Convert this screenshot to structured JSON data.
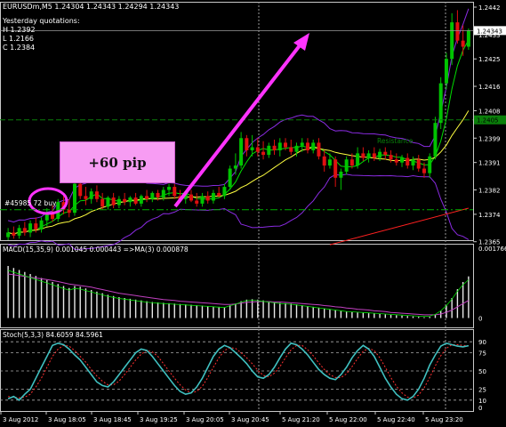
{
  "header": {
    "symbol_line": "EURUSDm,M5  1.24304 1.24343 1.24294 1.24343",
    "yesterday_label": "Yesterday quotations:",
    "high": "H 1.2392",
    "low": "L 1.2166",
    "close": "C 1.2384"
  },
  "annotations": {
    "pip_label": "+60 pip",
    "order_label": "#45985 72 buy",
    "resistance_label": "Resistance"
  },
  "indicators": {
    "macd_label": "MACD(15,35,9) 0.001045 0.000443  =>MA(3) 0.000878",
    "stoch_label": "Stoch(5,3,3) 84.6059 84.5961"
  },
  "colors": {
    "bull": "#00c400",
    "bear": "#e01010",
    "arrow": "#ff33ff",
    "bollinger": "#8a2be2",
    "ema_fast": "#00e000",
    "ema_slow": "#ffff40",
    "trend": "#ff2020",
    "macd_signal": "#c040c0",
    "stoch_main": "#40c0c0",
    "stoch_signal": "#ff3030",
    "resistance": "#0a7f0a"
  },
  "chart_data": [
    {
      "type": "candlestick",
      "symbol": "EURUSDm",
      "timeframe": "M5",
      "ylim": [
        1.23655,
        1.2442
      ],
      "price_axis": [
        "1.2442",
        "1.2433",
        "1.2425",
        "1.2416",
        "1.2408",
        "1.2399",
        "1.2391",
        "1.2382",
        "1.2374",
        "1.2365"
      ],
      "current_price": "1.24343",
      "resistance_price": "1.2405",
      "time_axis": [
        "3 Aug 2012",
        "3 Aug 18:05",
        "3 Aug 18:45",
        "3 Aug 19:25",
        "3 Aug 20:05",
        "3 Aug 20:45",
        "5 Aug 21:20",
        "5 Aug 22:00",
        "5 Aug 22:40",
        "5 Aug 23:20"
      ],
      "candles": [
        {
          "o": 1.23665,
          "h": 1.23695,
          "l": 1.23655,
          "c": 1.2368
        },
        {
          "o": 1.2368,
          "h": 1.237,
          "l": 1.2366,
          "c": 1.2367
        },
        {
          "o": 1.2367,
          "h": 1.23705,
          "l": 1.2366,
          "c": 1.23695
        },
        {
          "o": 1.23695,
          "h": 1.23715,
          "l": 1.2367,
          "c": 1.2368
        },
        {
          "o": 1.2368,
          "h": 1.2372,
          "l": 1.23665,
          "c": 1.2371
        },
        {
          "o": 1.2371,
          "h": 1.2373,
          "l": 1.2368,
          "c": 1.2369
        },
        {
          "o": 1.2369,
          "h": 1.2373,
          "l": 1.2368,
          "c": 1.2372
        },
        {
          "o": 1.2372,
          "h": 1.2376,
          "l": 1.237,
          "c": 1.2374
        },
        {
          "o": 1.2374,
          "h": 1.2377,
          "l": 1.23715,
          "c": 1.23725
        },
        {
          "o": 1.23725,
          "h": 1.2379,
          "l": 1.23715,
          "c": 1.2378
        },
        {
          "o": 1.2378,
          "h": 1.238,
          "l": 1.2374,
          "c": 1.23755
        },
        {
          "o": 1.23755,
          "h": 1.2379,
          "l": 1.2373,
          "c": 1.23745
        },
        {
          "o": 1.23745,
          "h": 1.2385,
          "l": 1.23735,
          "c": 1.2384
        },
        {
          "o": 1.2384,
          "h": 1.2386,
          "l": 1.2379,
          "c": 1.238
        },
        {
          "o": 1.238,
          "h": 1.2383,
          "l": 1.2377,
          "c": 1.2379
        },
        {
          "o": 1.2379,
          "h": 1.23825,
          "l": 1.23775,
          "c": 1.23815
        },
        {
          "o": 1.23815,
          "h": 1.23835,
          "l": 1.2378,
          "c": 1.2379
        },
        {
          "o": 1.2379,
          "h": 1.2381,
          "l": 1.23755,
          "c": 1.23765
        },
        {
          "o": 1.23765,
          "h": 1.238,
          "l": 1.23755,
          "c": 1.23795
        },
        {
          "o": 1.23795,
          "h": 1.2381,
          "l": 1.2376,
          "c": 1.2377
        },
        {
          "o": 1.2377,
          "h": 1.238,
          "l": 1.2376,
          "c": 1.2379
        },
        {
          "o": 1.2379,
          "h": 1.2381,
          "l": 1.2377,
          "c": 1.2378
        },
        {
          "o": 1.2378,
          "h": 1.238,
          "l": 1.23765,
          "c": 1.23795
        },
        {
          "o": 1.23795,
          "h": 1.2381,
          "l": 1.2377,
          "c": 1.23775
        },
        {
          "o": 1.23775,
          "h": 1.23805,
          "l": 1.23765,
          "c": 1.238
        },
        {
          "o": 1.238,
          "h": 1.2382,
          "l": 1.2378,
          "c": 1.2379
        },
        {
          "o": 1.2379,
          "h": 1.23815,
          "l": 1.2378,
          "c": 1.2381
        },
        {
          "o": 1.2381,
          "h": 1.2382,
          "l": 1.23785,
          "c": 1.23795
        },
        {
          "o": 1.23795,
          "h": 1.2383,
          "l": 1.23785,
          "c": 1.2382
        },
        {
          "o": 1.2382,
          "h": 1.2384,
          "l": 1.238,
          "c": 1.2383
        },
        {
          "o": 1.2383,
          "h": 1.2384,
          "l": 1.2379,
          "c": 1.238
        },
        {
          "o": 1.238,
          "h": 1.2382,
          "l": 1.2378,
          "c": 1.2379
        },
        {
          "o": 1.2379,
          "h": 1.23815,
          "l": 1.23775,
          "c": 1.23805
        },
        {
          "o": 1.23805,
          "h": 1.2382,
          "l": 1.2378,
          "c": 1.23785
        },
        {
          "o": 1.23785,
          "h": 1.2381,
          "l": 1.23765,
          "c": 1.23775
        },
        {
          "o": 1.23775,
          "h": 1.2381,
          "l": 1.23765,
          "c": 1.238
        },
        {
          "o": 1.238,
          "h": 1.23815,
          "l": 1.23775,
          "c": 1.23785
        },
        {
          "o": 1.23785,
          "h": 1.2382,
          "l": 1.23775,
          "c": 1.2381
        },
        {
          "o": 1.2381,
          "h": 1.2383,
          "l": 1.23795,
          "c": 1.238
        },
        {
          "o": 1.238,
          "h": 1.2384,
          "l": 1.2379,
          "c": 1.2383
        },
        {
          "o": 1.2383,
          "h": 1.239,
          "l": 1.2382,
          "c": 1.2389
        },
        {
          "o": 1.2389,
          "h": 1.2394,
          "l": 1.2387,
          "c": 1.239
        },
        {
          "o": 1.239,
          "h": 1.2401,
          "l": 1.2389,
          "c": 1.2399
        },
        {
          "o": 1.2399,
          "h": 1.24,
          "l": 1.2393,
          "c": 1.2395
        },
        {
          "o": 1.2395,
          "h": 1.24,
          "l": 1.2393,
          "c": 1.2396
        },
        {
          "o": 1.2396,
          "h": 1.2399,
          "l": 1.2393,
          "c": 1.23945
        },
        {
          "o": 1.23945,
          "h": 1.2398,
          "l": 1.2392,
          "c": 1.23935
        },
        {
          "o": 1.23935,
          "h": 1.23975,
          "l": 1.23925,
          "c": 1.23965
        },
        {
          "o": 1.23965,
          "h": 1.23985,
          "l": 1.23935,
          "c": 1.2395
        },
        {
          "o": 1.2395,
          "h": 1.2399,
          "l": 1.2393,
          "c": 1.23975
        },
        {
          "o": 1.23975,
          "h": 1.2399,
          "l": 1.2395,
          "c": 1.2396
        },
        {
          "o": 1.2396,
          "h": 1.23985,
          "l": 1.23935,
          "c": 1.23945
        },
        {
          "o": 1.23945,
          "h": 1.23975,
          "l": 1.2393,
          "c": 1.23965
        },
        {
          "o": 1.23965,
          "h": 1.2399,
          "l": 1.23945,
          "c": 1.23975
        },
        {
          "o": 1.23975,
          "h": 1.2399,
          "l": 1.2394,
          "c": 1.2395
        },
        {
          "o": 1.2395,
          "h": 1.23985,
          "l": 1.2394,
          "c": 1.23975
        },
        {
          "o": 1.23975,
          "h": 1.2399,
          "l": 1.2392,
          "c": 1.2393
        },
        {
          "o": 1.2393,
          "h": 1.2395,
          "l": 1.2388,
          "c": 1.239
        },
        {
          "o": 1.239,
          "h": 1.2394,
          "l": 1.2389,
          "c": 1.2392
        },
        {
          "o": 1.2392,
          "h": 1.2393,
          "l": 1.2383,
          "c": 1.2386
        },
        {
          "o": 1.2386,
          "h": 1.2389,
          "l": 1.2382,
          "c": 1.2388
        },
        {
          "o": 1.2388,
          "h": 1.2393,
          "l": 1.2387,
          "c": 1.2392
        },
        {
          "o": 1.2392,
          "h": 1.2394,
          "l": 1.2389,
          "c": 1.239
        },
        {
          "o": 1.239,
          "h": 1.2396,
          "l": 1.2389,
          "c": 1.2394
        },
        {
          "o": 1.2394,
          "h": 1.2396,
          "l": 1.23915,
          "c": 1.23925
        },
        {
          "o": 1.23925,
          "h": 1.2395,
          "l": 1.2391,
          "c": 1.2394
        },
        {
          "o": 1.2394,
          "h": 1.2396,
          "l": 1.23915,
          "c": 1.23925
        },
        {
          "o": 1.23925,
          "h": 1.23955,
          "l": 1.23915,
          "c": 1.23945
        },
        {
          "o": 1.23945,
          "h": 1.2396,
          "l": 1.2392,
          "c": 1.23935
        },
        {
          "o": 1.23935,
          "h": 1.2395,
          "l": 1.2391,
          "c": 1.2392
        },
        {
          "o": 1.2392,
          "h": 1.2394,
          "l": 1.239,
          "c": 1.2391
        },
        {
          "o": 1.2391,
          "h": 1.23935,
          "l": 1.23895,
          "c": 1.23925
        },
        {
          "o": 1.23925,
          "h": 1.2394,
          "l": 1.2389,
          "c": 1.239
        },
        {
          "o": 1.239,
          "h": 1.2393,
          "l": 1.23885,
          "c": 1.2392
        },
        {
          "o": 1.2392,
          "h": 1.23935,
          "l": 1.2388,
          "c": 1.2389
        },
        {
          "o": 1.2389,
          "h": 1.2391,
          "l": 1.2386,
          "c": 1.23875
        },
        {
          "o": 1.23875,
          "h": 1.2394,
          "l": 1.2386,
          "c": 1.2393
        },
        {
          "o": 1.2393,
          "h": 1.2406,
          "l": 1.2392,
          "c": 1.2404
        },
        {
          "o": 1.2404,
          "h": 1.2419,
          "l": 1.2402,
          "c": 1.2417
        },
        {
          "o": 1.2417,
          "h": 1.2427,
          "l": 1.2415,
          "c": 1.2425
        },
        {
          "o": 1.2425,
          "h": 1.244,
          "l": 1.2423,
          "c": 1.2437
        },
        {
          "o": 1.2437,
          "h": 1.2441,
          "l": 1.243,
          "c": 1.2431
        },
        {
          "o": 1.2431,
          "h": 1.2436,
          "l": 1.2426,
          "c": 1.2429
        },
        {
          "o": 1.2429,
          "h": 1.2435,
          "l": 1.2428,
          "c": 1.24343
        }
      ]
    },
    {
      "type": "bar",
      "name": "MACD(15,35,9)",
      "values_text": [
        "0.001045",
        "0.000443",
        "0.000878"
      ],
      "ylim": [
        -0.0001,
        0.001766
      ],
      "axis_labels": [
        "0.001766",
        "0"
      ],
      "histogram": [
        0.0013,
        0.00125,
        0.0012,
        0.00115,
        0.0011,
        0.00105,
        0.001,
        0.00095,
        0.0009,
        0.00085,
        0.0008,
        0.00075,
        0.0008,
        0.00078,
        0.00074,
        0.0007,
        0.00066,
        0.00062,
        0.00058,
        0.00055,
        0.00052,
        0.0005,
        0.00048,
        0.00046,
        0.00044,
        0.00042,
        0.0004,
        0.00039,
        0.00038,
        0.00037,
        0.00036,
        0.00035,
        0.00034,
        0.00033,
        0.00032,
        0.00031,
        0.0003,
        0.00029,
        0.00028,
        0.00027,
        0.00032,
        0.00036,
        0.00042,
        0.00046,
        0.00047,
        0.00046,
        0.00044,
        0.00042,
        0.0004,
        0.00038,
        0.00037,
        0.00036,
        0.00034,
        0.00032,
        0.0003,
        0.00028,
        0.00026,
        0.00024,
        0.00022,
        0.0002,
        0.00018,
        0.00016,
        0.00015,
        0.00014,
        0.00013,
        0.00012,
        0.00011,
        0.0001,
        9e-05,
        8e-05,
        7e-05,
        6e-05,
        5e-05,
        4e-05,
        3e-05,
        2e-05,
        3e-05,
        8e-05,
        0.00018,
        0.00032,
        0.0005,
        0.00072,
        0.0009,
        0.00104
      ],
      "signal": [
        0.0011,
        0.00108,
        0.00106,
        0.00104,
        0.00102,
        0.001,
        0.00098,
        0.00096,
        0.00094,
        0.00091,
        0.00088,
        0.00085,
        0.00083,
        0.00081,
        0.00079,
        0.00077,
        0.00074,
        0.00071,
        0.00068,
        0.00065,
        0.00062,
        0.0006,
        0.00058,
        0.00056,
        0.00054,
        0.00052,
        0.0005,
        0.00048,
        0.00046,
        0.00045,
        0.00044,
        0.00042,
        0.00041,
        0.0004,
        0.00039,
        0.00038,
        0.00037,
        0.00036,
        0.00035,
        0.00034,
        0.00034,
        0.00035,
        0.00037,
        0.00039,
        0.0004,
        0.00041,
        0.00041,
        0.00041,
        0.0004,
        0.0004,
        0.00039,
        0.00038,
        0.00037,
        0.00036,
        0.00035,
        0.00034,
        0.00033,
        0.00031,
        0.0003,
        0.00028,
        0.00027,
        0.00025,
        0.00024,
        0.00022,
        0.00021,
        0.0002,
        0.00018,
        0.00017,
        0.00016,
        0.00014,
        0.00013,
        0.00012,
        0.00011,
        0.0001,
        9e-05,
        8e-05,
        8e-05,
        8e-05,
        0.0001,
        0.00014,
        0.0002,
        0.00028,
        0.00036,
        0.00044
      ]
    },
    {
      "type": "line",
      "name": "Stoch(5,3,3)",
      "values_text": [
        "84.6059",
        "84.5961"
      ],
      "ylim": [
        0,
        100
      ],
      "levels": [
        "90",
        "75",
        "50",
        "25",
        "10",
        "0"
      ],
      "main": [
        12,
        15,
        10,
        18,
        25,
        40,
        55,
        70,
        85,
        88,
        86,
        80,
        72,
        65,
        55,
        45,
        35,
        30,
        28,
        35,
        45,
        55,
        65,
        75,
        80,
        78,
        70,
        60,
        50,
        40,
        30,
        22,
        18,
        20,
        28,
        40,
        55,
        70,
        80,
        85,
        82,
        75,
        68,
        60,
        50,
        42,
        40,
        45,
        55,
        68,
        80,
        88,
        86,
        80,
        72,
        62,
        52,
        45,
        40,
        38,
        45,
        55,
        68,
        78,
        85,
        80,
        70,
        55,
        40,
        28,
        18,
        12,
        10,
        15,
        25,
        40,
        58,
        72,
        84,
        88,
        86,
        84,
        83,
        84.6
      ],
      "signal": [
        15,
        14,
        13,
        14,
        18,
        28,
        40,
        55,
        70,
        80,
        85,
        84,
        78,
        70,
        62,
        52,
        43,
        36,
        31,
        31,
        36,
        45,
        55,
        65,
        73,
        78,
        76,
        70,
        60,
        50,
        40,
        31,
        24,
        20,
        22,
        29,
        41,
        55,
        68,
        78,
        82,
        81,
        75,
        68,
        60,
        51,
        44,
        42,
        47,
        56,
        68,
        79,
        85,
        85,
        79,
        71,
        61,
        52,
        45,
        41,
        41,
        46,
        56,
        67,
        77,
        81,
        78,
        68,
        55,
        41,
        29,
        20,
        14,
        13,
        17,
        27,
        41,
        57,
        71,
        81,
        86,
        86,
        85,
        84.6
      ]
    }
  ]
}
